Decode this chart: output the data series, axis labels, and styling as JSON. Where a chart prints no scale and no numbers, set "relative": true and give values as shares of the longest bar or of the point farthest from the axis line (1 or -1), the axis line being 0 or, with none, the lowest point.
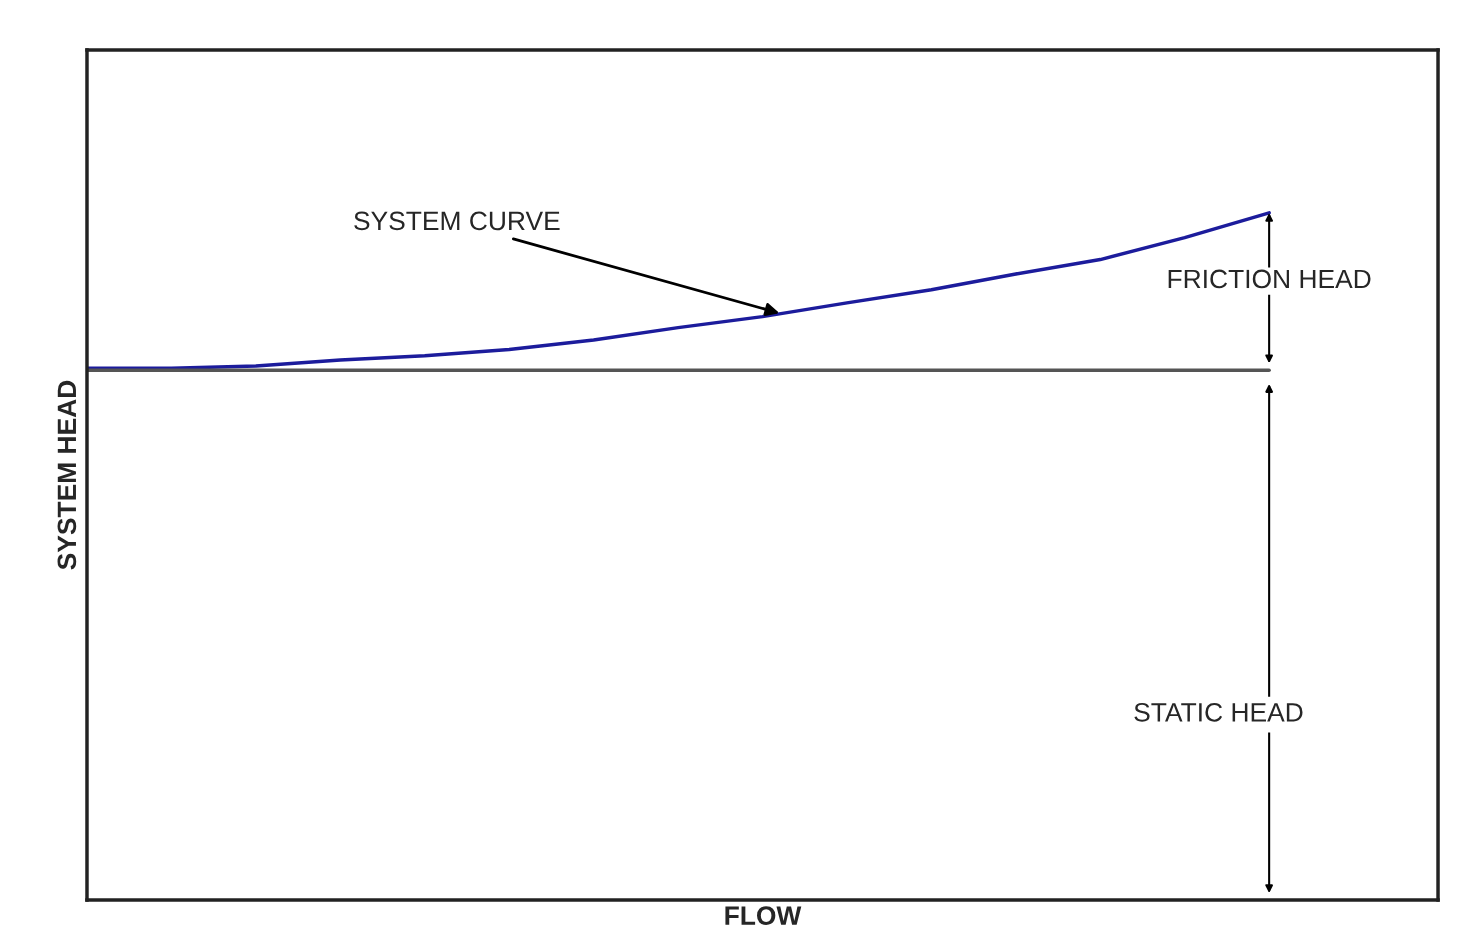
{
  "chart_data": {
    "type": "line",
    "relative": true,
    "xlabel": "FLOW",
    "ylabel": "SYSTEM HEAD",
    "categories": [
      null,
      null,
      null,
      null,
      null,
      null,
      null,
      null,
      null,
      null,
      null,
      null,
      null,
      null,
      null,
      null,
      null
    ],
    "series": [
      {
        "color": "#1c1c9c",
        "values": [
          0.774,
          0.774,
          0.777,
          0.786,
          0.792,
          0.801,
          0.815,
          0.833,
          0.849,
          0.869,
          0.888,
          0.911,
          0.932,
          0.964,
          1.0,
          null,
          null
        ]
      },
      {
        "color": "#555555",
        "values": [
          0.771,
          0.771,
          0.771,
          0.771,
          0.771,
          0.771,
          0.771,
          0.771,
          0.771,
          0.771,
          0.771,
          0.771,
          0.771,
          0.771,
          0.771,
          null,
          null
        ]
      }
    ],
    "annotations": [
      "SYSTEM CURVE",
      "FRICTION HEAD",
      "STATIC HEAD"
    ]
  }
}
